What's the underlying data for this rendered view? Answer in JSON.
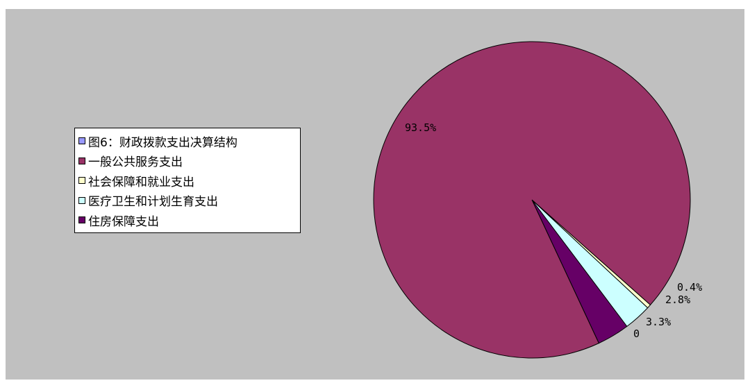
{
  "chart_data": {
    "type": "pie",
    "legend_placement": "left",
    "legend": [
      {
        "label": "图6：财政拨款支出决算结构",
        "color": "#9999ff"
      },
      {
        "label": "一般公共服务支出",
        "color": "#993366"
      },
      {
        "label": "社会保障和就业支出",
        "color": "#ffffcc"
      },
      {
        "label": "医疗卫生和计划生育支出",
        "color": "#ccffff"
      },
      {
        "label": "住房保障支出",
        "color": "#660066"
      }
    ],
    "slices": [
      {
        "label": "图6：财政拨款支出决算结构",
        "value": 0,
        "display": "0",
        "color": "#9999ff"
      },
      {
        "label": "一般公共服务支出",
        "value": 93.5,
        "display": "93.5%",
        "color": "#993366"
      },
      {
        "label": "社会保障和就业支出",
        "value": 0.4,
        "display": "0.4%",
        "color": "#ffffcc"
      },
      {
        "label": "医疗卫生和计划生育支出",
        "value": 2.8,
        "display": "2.8%",
        "color": "#ccffff"
      },
      {
        "label": "住房保障支出",
        "value": 3.3,
        "display": "3.3%",
        "color": "#660066"
      }
    ]
  }
}
